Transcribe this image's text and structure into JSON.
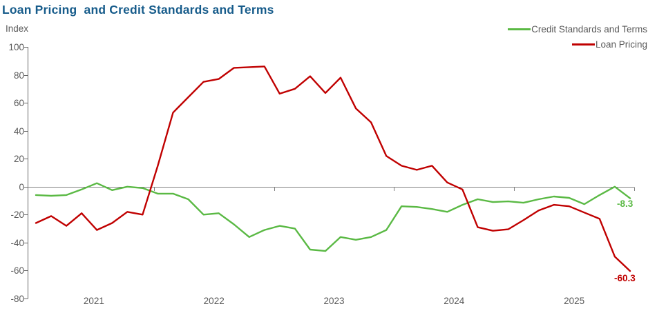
{
  "title": "Loan Pricing  and Credit Standards and Terms",
  "y_axis_unit": "Index",
  "legend": {
    "position": "top-right",
    "items": [
      {
        "label": "Credit Standards and Terms",
        "color": "#5ab944"
      },
      {
        "label": "Loan Pricing",
        "color": "#c00000"
      }
    ]
  },
  "chart_data": {
    "type": "line",
    "title": "Loan Pricing and Credit Standards and Terms",
    "ylabel": "Index",
    "ylim": [
      -80,
      100
    ],
    "y_ticks": [
      100,
      80,
      60,
      40,
      20,
      0,
      -20,
      -40,
      -60,
      -80
    ],
    "x_tick_labels": [
      "2021",
      "2022",
      "2023",
      "2024",
      "2025"
    ],
    "points_per_year": 8,
    "grid": false,
    "legend_position": "top-right",
    "axis_color": "#666666",
    "text_color": "#595959",
    "series": [
      {
        "name": "Credit Standards and Terms",
        "color": "#5ab944",
        "end_label": "-8.3",
        "values": [
          -6,
          -6.5,
          -6,
          -2,
          2.5,
          -2.5,
          0,
          -1,
          -5,
          -5,
          -9,
          -20,
          -19,
          -27,
          -36,
          -31,
          -28,
          -30,
          -45,
          -46,
          -36,
          -38,
          -36,
          -31,
          -14,
          -14.5,
          -16,
          -18,
          -13,
          -9,
          -11,
          -10.5,
          -11.5,
          -9,
          -7,
          -8,
          -12.5,
          -6,
          0,
          -8.3
        ]
      },
      {
        "name": "Loan Pricing",
        "color": "#c00000",
        "end_label": "-60.3",
        "values": [
          -26,
          -21,
          -28,
          -19,
          -31,
          -26,
          -18,
          -20,
          15,
          53,
          64,
          75,
          77,
          85,
          85.5,
          86,
          66.5,
          70,
          79,
          67,
          78,
          56,
          46,
          22,
          15,
          12,
          15,
          3,
          -2,
          -29,
          -31.5,
          -30.5,
          -24,
          -17,
          -13,
          -14,
          -18.5,
          -23,
          -50,
          -60.3
        ]
      }
    ]
  }
}
